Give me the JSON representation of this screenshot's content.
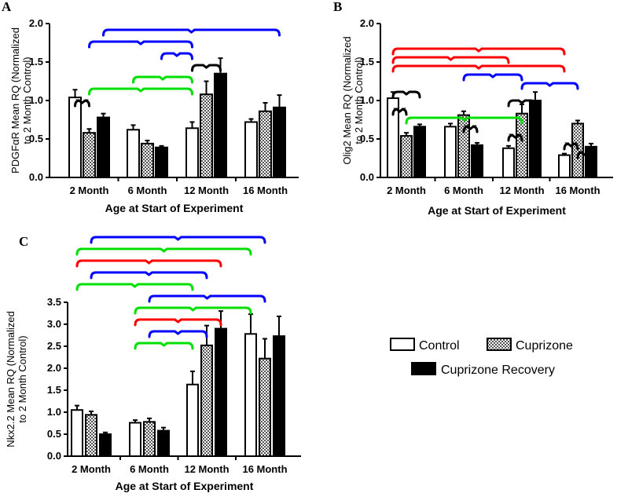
{
  "chart_data": [
    {
      "panel": "A",
      "type": "bar",
      "xlabel": "Age at Start of Experiment",
      "ylabel": [
        "PDGFαR Mean RQ (Normalized",
        "to 2 Month Control)"
      ],
      "ylim": [
        0,
        2.0
      ],
      "yticks": [
        "0.0",
        "0.5",
        "1.0",
        "1.5",
        "2.0"
      ],
      "categories": [
        "2 Month",
        "6 Month",
        "12 Month",
        "16 Month"
      ],
      "series": [
        {
          "name": "Control",
          "values": [
            1.04,
            0.62,
            0.64,
            0.72
          ],
          "errors": [
            0.1,
            0.06,
            0.08,
            0.04
          ]
        },
        {
          "name": "Cuprizone",
          "values": [
            0.58,
            0.44,
            1.08,
            0.86
          ],
          "errors": [
            0.05,
            0.04,
            0.17,
            0.11
          ]
        },
        {
          "name": "Cuprizone Recovery",
          "values": [
            0.78,
            0.39,
            1.35,
            0.91
          ],
          "errors": [
            0.05,
            0.02,
            0.2,
            0.16
          ]
        }
      ],
      "brackets": [
        {
          "color": "#0000ff",
          "from": [
            0,
            2
          ],
          "to": [
            3,
            2
          ]
        },
        {
          "color": "#0000ff",
          "from": [
            0,
            1
          ],
          "to": [
            2,
            0
          ]
        },
        {
          "color": "#0000ff",
          "from": [
            1,
            2
          ],
          "to": [
            2,
            0
          ]
        },
        {
          "color": "#000000",
          "from": [
            2,
            0
          ],
          "to": [
            2,
            2
          ]
        },
        {
          "color": "#00e000",
          "from": [
            1,
            0
          ],
          "to": [
            2,
            0
          ]
        },
        {
          "color": "#00e000",
          "from": [
            0,
            1
          ],
          "to": [
            2,
            0
          ]
        },
        {
          "color": "#000000",
          "from": [
            0,
            0
          ],
          "to": [
            0,
            1
          ]
        }
      ]
    },
    {
      "panel": "B",
      "type": "bar",
      "xlabel": "Age at Start of Experiment",
      "ylabel": [
        "Olig2 Mean RQ (Normalized",
        "to 2 Month Control)"
      ],
      "ylim": [
        0,
        2.0
      ],
      "yticks": [
        "0.0",
        "0.5",
        "1.0",
        "1.5",
        "2.0"
      ],
      "categories": [
        "2 Month",
        "6 Month",
        "12 Month",
        "16 Month"
      ],
      "series": [
        {
          "name": "Control",
          "values": [
            1.03,
            0.66,
            0.38,
            0.29
          ],
          "errors": [
            0.08,
            0.04,
            0.03,
            0.02
          ]
        },
        {
          "name": "Cuprizone",
          "values": [
            0.54,
            0.81,
            0.83,
            0.7
          ],
          "errors": [
            0.04,
            0.05,
            0.12,
            0.04
          ]
        },
        {
          "name": "Cuprizone Recovery",
          "values": [
            0.66,
            0.42,
            1.0,
            0.4
          ],
          "errors": [
            0.03,
            0.03,
            0.11,
            0.04
          ]
        }
      ],
      "brackets": [
        {
          "color": "#ff0000",
          "from": [
            0,
            0
          ],
          "to": [
            3,
            0
          ]
        },
        {
          "color": "#ff0000",
          "from": [
            0,
            0
          ],
          "to": [
            2,
            0
          ]
        },
        {
          "color": "#ff0000",
          "from": [
            0,
            0
          ],
          "to": [
            3,
            0
          ]
        },
        {
          "color": "#0000ff",
          "from": [
            1,
            1
          ],
          "to": [
            2,
            1
          ]
        },
        {
          "color": "#0000ff",
          "from": [
            2,
            1
          ],
          "to": [
            3,
            1
          ]
        },
        {
          "color": "#000000",
          "from": [
            0,
            0
          ],
          "to": [
            0,
            2
          ]
        },
        {
          "color": "#000000",
          "from": [
            2,
            0
          ],
          "to": [
            2,
            2
          ]
        },
        {
          "color": "#000000",
          "from": [
            0,
            0
          ],
          "to": [
            0,
            1
          ]
        },
        {
          "color": "#00e000",
          "from": [
            0,
            1
          ],
          "to": [
            2,
            1
          ]
        },
        {
          "color": "#000000",
          "from": [
            1,
            1
          ],
          "to": [
            1,
            2
          ]
        },
        {
          "color": "#000000",
          "from": [
            2,
            0
          ],
          "to": [
            2,
            1
          ]
        },
        {
          "color": "#000000",
          "from": [
            3,
            0
          ],
          "to": [
            3,
            1
          ]
        },
        {
          "color": "#000000",
          "from": [
            3,
            1
          ],
          "to": [
            3,
            2
          ]
        }
      ]
    },
    {
      "panel": "C",
      "type": "bar",
      "xlabel": "Age at Start of Experiment",
      "ylabel": [
        "Nkx2.2 Mean RQ (Normalized",
        "to 2 Month Control)"
      ],
      "ylim": [
        0,
        3.5
      ],
      "yticks": [
        "0.0",
        "0.5",
        "1.0",
        "1.5",
        "2.0",
        "2.5",
        "3.0",
        "3.5"
      ],
      "categories": [
        "2 Month",
        "6 Month",
        "12 Month",
        "16 Month"
      ],
      "series": [
        {
          "name": "Control",
          "values": [
            1.05,
            0.76,
            1.63,
            2.78
          ],
          "errors": [
            0.1,
            0.06,
            0.3,
            0.45
          ]
        },
        {
          "name": "Cuprizone",
          "values": [
            0.94,
            0.78,
            2.52,
            2.22
          ],
          "errors": [
            0.08,
            0.08,
            0.45,
            0.45
          ]
        },
        {
          "name": "Cuprizone Recovery",
          "values": [
            0.5,
            0.58,
            2.9,
            2.73
          ],
          "errors": [
            0.04,
            0.07,
            0.4,
            0.45
          ]
        }
      ],
      "brackets": [
        {
          "color": "#0000ff",
          "from": [
            0,
            1
          ],
          "to": [
            3,
            1
          ]
        },
        {
          "color": "#00e000",
          "from": [
            0,
            0
          ],
          "to": [
            3,
            0
          ]
        },
        {
          "color": "#ff0000",
          "from": [
            0,
            0
          ],
          "to": [
            2,
            2
          ]
        },
        {
          "color": "#0000ff",
          "from": [
            0,
            1
          ],
          "to": [
            2,
            1
          ]
        },
        {
          "color": "#00e000",
          "from": [
            0,
            0
          ],
          "to": [
            2,
            0
          ]
        },
        {
          "color": "#0000ff",
          "from": [
            1,
            1
          ],
          "to": [
            3,
            1
          ]
        },
        {
          "color": "#00e000",
          "from": [
            1,
            0
          ],
          "to": [
            3,
            0
          ]
        },
        {
          "color": "#ff0000",
          "from": [
            1,
            0
          ],
          "to": [
            2,
            2
          ]
        },
        {
          "color": "#0000ff",
          "from": [
            1,
            1
          ],
          "to": [
            2,
            1
          ]
        },
        {
          "color": "#00e000",
          "from": [
            1,
            0
          ],
          "to": [
            2,
            0
          ]
        }
      ]
    }
  ],
  "legend": {
    "items": [
      {
        "label": "Control",
        "style": "white"
      },
      {
        "label": "Cuprizone",
        "style": "checkered"
      },
      {
        "label": "Cuprizone Recovery",
        "style": "black"
      }
    ]
  },
  "colors": {
    "black": "#000000",
    "red": "#ff0000",
    "green": "#00e000",
    "blue": "#0000ff"
  }
}
